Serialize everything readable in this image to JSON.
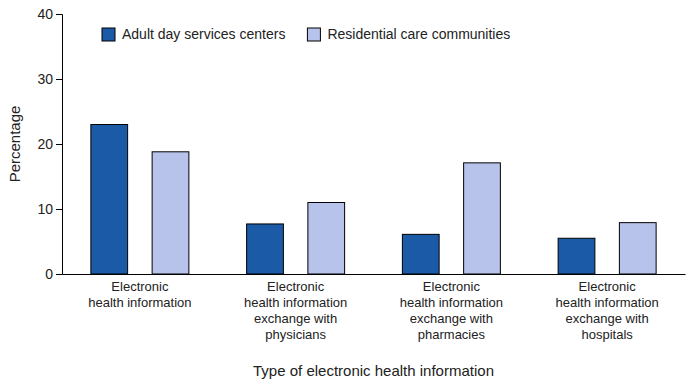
{
  "chart_data": {
    "type": "bar",
    "x_label": "Type of electronic health information",
    "y_label": "Percentage",
    "categories": [
      "Electronic\nhealth information",
      "Electronic\nhealth information\nexchange with\nphysicians",
      "Electronic\nhealth information\nexchange with\npharmacies",
      "Electronic\nhealth information\nexchange with\nhospitals"
    ],
    "series": [
      {
        "name": "Adult day services centers",
        "color": "#1b5aa6",
        "values": [
          23,
          7.7,
          6.1,
          5.5
        ]
      },
      {
        "name": "Residential care communities",
        "color": "#b8c3ec",
        "values": [
          18.8,
          11,
          17.1,
          7.9
        ]
      }
    ],
    "ylim": [
      0,
      40
    ],
    "yticks": [
      0,
      10,
      20,
      30,
      40
    ],
    "grid": false,
    "legend": "top-left"
  }
}
